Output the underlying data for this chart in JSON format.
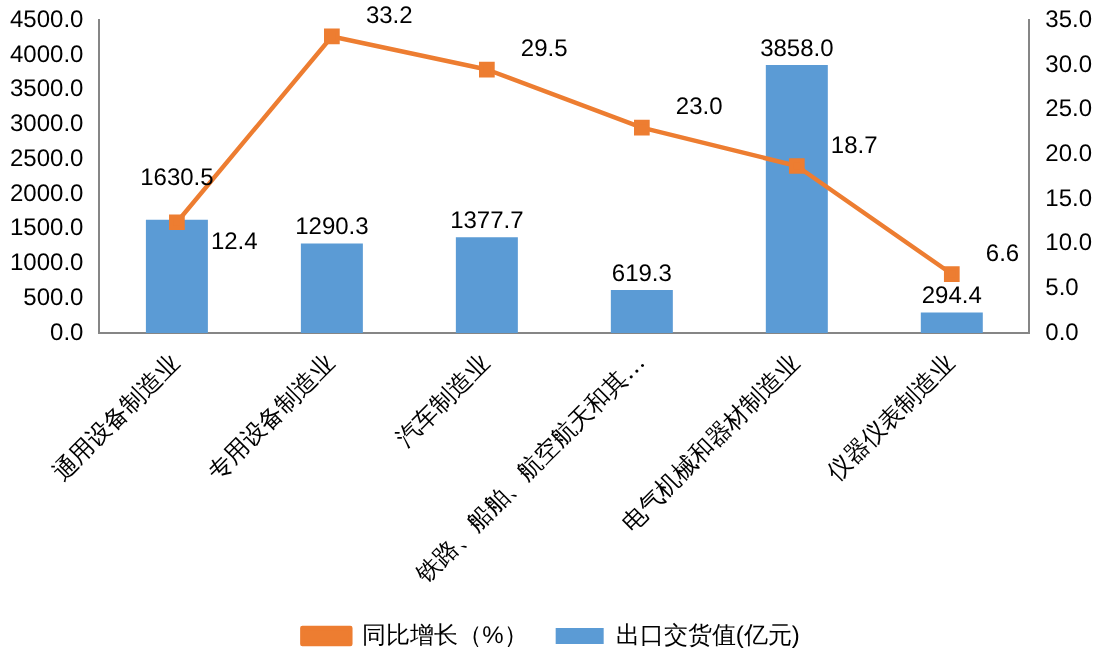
{
  "chart_data": {
    "type": "bar",
    "categories": [
      "通用设备制造业",
      "专用设备制造业",
      "汽车制造业",
      "铁路、船舶、航空航天和其…",
      "电气机械和器材制造业",
      "仪器仪表制造业"
    ],
    "series": [
      {
        "name": "出口交货值(亿元)",
        "color": "#5b9bd5",
        "values": [
          1630.5,
          1290.3,
          1377.7,
          619.3,
          3858.0,
          294.4
        ],
        "value_labels": [
          "1630.5",
          "1290.3",
          "1377.7",
          "619.3",
          "3858.0",
          "294.4"
        ]
      },
      {
        "name": "同比增长（%）",
        "type": "line",
        "axis": "y2",
        "color": "#ed7d31",
        "marker": "square",
        "values": [
          12.4,
          33.2,
          29.5,
          23.0,
          18.7,
          6.6
        ],
        "value_labels": [
          "12.4",
          "33.2",
          "29.5",
          "23.0",
          "18.7",
          "6.6"
        ]
      }
    ],
    "ylim": [
      0,
      4500
    ],
    "yticks": [
      {
        "value": 0,
        "label": "0.0"
      },
      {
        "value": 500,
        "label": "500.0"
      },
      {
        "value": 1000,
        "label": "1000.0"
      },
      {
        "value": 1500,
        "label": "1500.0"
      },
      {
        "value": 2000,
        "label": "2000.0"
      },
      {
        "value": 2500,
        "label": "2500.0"
      },
      {
        "value": 3000,
        "label": "3000.0"
      },
      {
        "value": 3500,
        "label": "3500.0"
      },
      {
        "value": 4000,
        "label": "4000.0"
      },
      {
        "value": 4500,
        "label": "4500.0"
      }
    ],
    "y2lim": [
      0,
      35
    ],
    "y2ticks": [
      {
        "value": 0,
        "label": "0.0"
      },
      {
        "value": 5,
        "label": "5.0"
      },
      {
        "value": 10,
        "label": "10.0"
      },
      {
        "value": 15,
        "label": "15.0"
      },
      {
        "value": 20,
        "label": "20.0"
      },
      {
        "value": 25,
        "label": "25.0"
      },
      {
        "value": 30,
        "label": "30.0"
      },
      {
        "value": 35,
        "label": "35.0"
      }
    ],
    "grid": false,
    "legend": "bottom"
  }
}
